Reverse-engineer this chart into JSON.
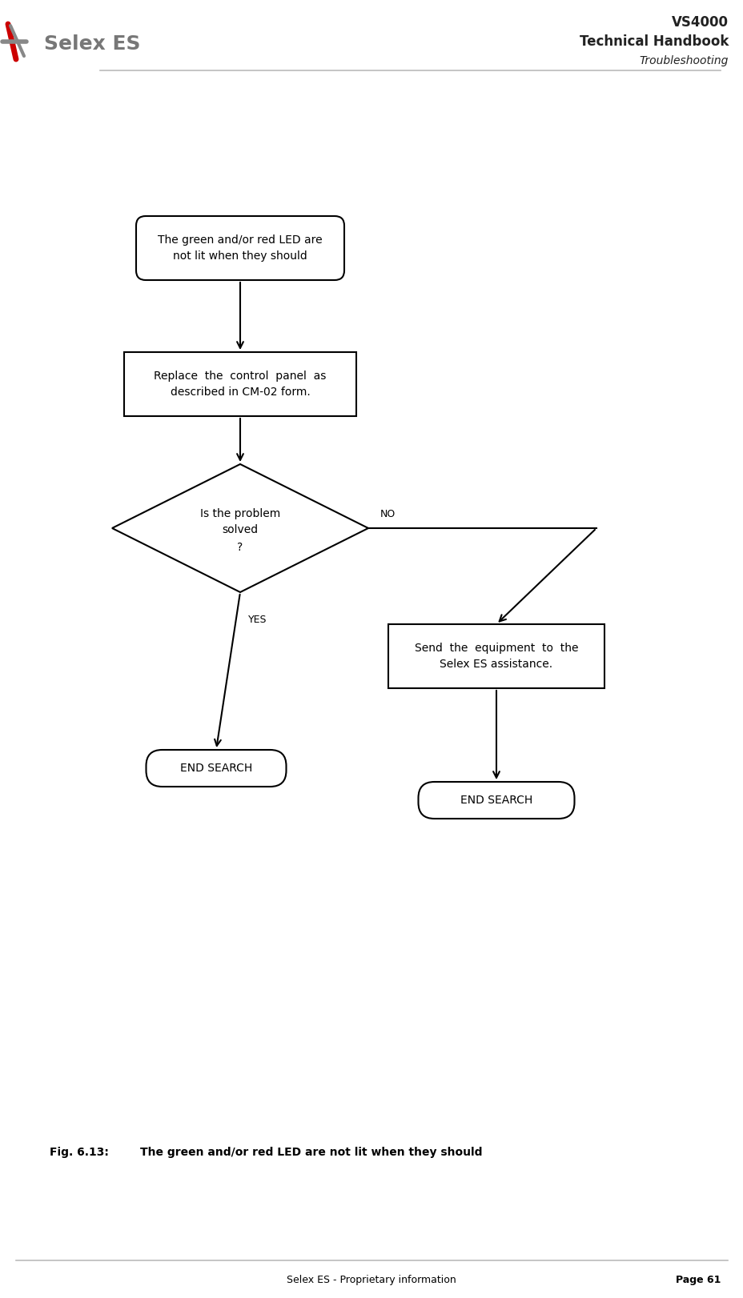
{
  "title_line1": "VS4000",
  "title_line2": "Technical Handbook",
  "title_line3": "Troubleshooting",
  "footer_left": "Selex ES - Proprietary information",
  "footer_right": "Page 61",
  "fig_label": "Fig. 6.13:",
  "fig_caption": "The green and/or red LED are not lit when they should",
  "box1_text": "The green and/or red LED are\nnot lit when they should",
  "box2_text": "Replace  the  control  panel  as\ndescribed in CM-02 form.",
  "box3_text": "Send  the  equipment  to  the\nSelex ES assistance.",
  "diamond_line1": "Is the problem",
  "diamond_line2": "solved",
  "diamond_line3": "?",
  "end1_text": "END SEARCH",
  "end2_text": "END SEARCH",
  "yes_label": "YES",
  "no_label": "NO",
  "bg_color": "#ffffff",
  "box_edge_color": "#000000",
  "text_color": "#000000",
  "arrow_color": "#000000",
  "header_line_color": "#bbbbbb",
  "footer_line_color": "#bbbbbb",
  "logo_text": "Selex ES",
  "logo_color": "#777777",
  "title_color": "#222222"
}
